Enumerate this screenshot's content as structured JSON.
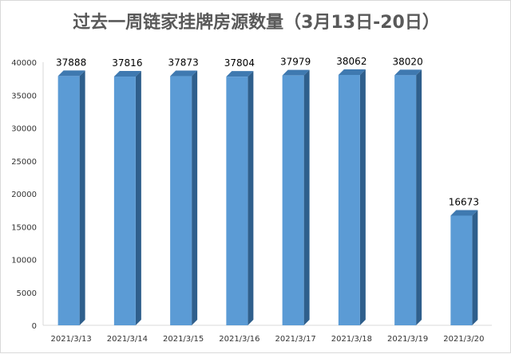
{
  "chart_data": {
    "type": "bar",
    "title": "过去一周链家挂牌房源数量（3月13日-20日）",
    "xlabel": "",
    "ylabel": "",
    "categories": [
      "2021/3/13",
      "2021/3/14",
      "2021/3/15",
      "2021/3/16",
      "2021/3/17",
      "2021/3/18",
      "2021/3/19",
      "2021/3/20"
    ],
    "values": [
      37888,
      37816,
      37873,
      37804,
      37979,
      38062,
      38020,
      16673
    ],
    "data_labels": [
      "37888",
      "37816",
      "37873",
      "37804",
      "37979",
      "38062",
      "38020",
      "16673"
    ],
    "ylim": [
      0,
      40000
    ],
    "yticks": [
      0,
      5000,
      10000,
      15000,
      20000,
      25000,
      30000,
      35000,
      40000
    ],
    "ytick_labels": [
      "0",
      "5000",
      "10000",
      "15000",
      "20000",
      "25000",
      "30000",
      "35000",
      "40000"
    ],
    "grid": false,
    "legend": "none",
    "style": "3d-column",
    "colors": {
      "bar_front": "#5b9bd5",
      "bar_side": "#2f5f8c",
      "bar_top": "#3f79b0",
      "axis": "#d9d9d9",
      "title": "#595959"
    }
  }
}
